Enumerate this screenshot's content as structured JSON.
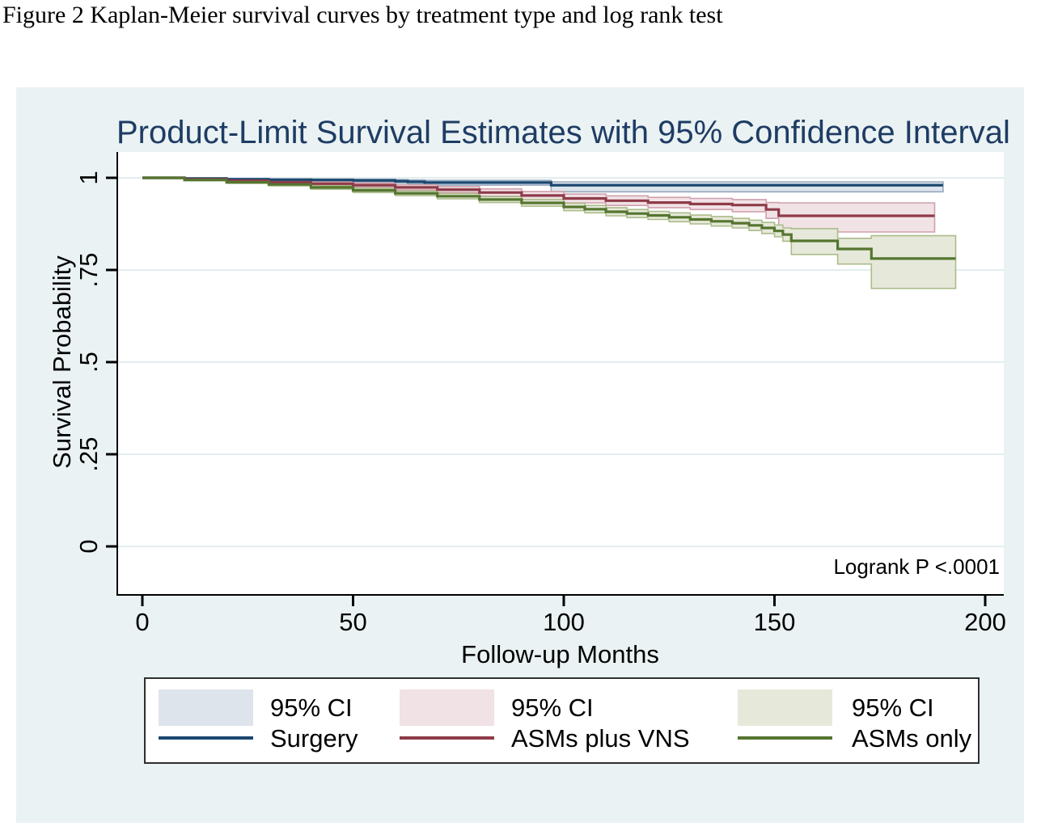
{
  "caption": "Figure 2 Kaplan-Meier survival curves by treatment type and log rank test",
  "chart_data": {
    "type": "line",
    "subtype": "kaplan-meier-step-with-ci-bands",
    "title": "Product-Limit Survival Estimates with 95% Confidence Interval",
    "xlabel": "Follow-up Months",
    "ylabel": "Survival Probability",
    "annotation": "Logrank P <.0001",
    "xlim": [
      0,
      204
    ],
    "ylim": [
      0,
      1.07
    ],
    "xticks": [
      0,
      50,
      100,
      150,
      200
    ],
    "yticks": [
      1,
      0.75,
      0.5,
      0.25,
      0
    ],
    "ytick_labels": [
      "1",
      ".75",
      ".5",
      ".25",
      "0"
    ],
    "grid": "horizontal",
    "legend_position": "bottom",
    "colors": {
      "panel_background": "#eaf2f3",
      "plot_background": "#ffffff",
      "gridline": "#e3edef",
      "axis": "#000000",
      "title": "#1e3c64",
      "text": "#000000"
    },
    "series": [
      {
        "name": "Surgery",
        "ci_label": "95% CI",
        "line_color": "#1a476f",
        "band_color": "#dde4eb",
        "band_edge": "#95a8bf",
        "x": [
          0,
          10,
          20,
          30,
          40,
          50,
          60,
          63,
          67,
          97,
          190
        ],
        "y": [
          1,
          0.998,
          0.996,
          0.995,
          0.994,
          0.993,
          0.991,
          0.989,
          0.987,
          0.98,
          0.98
        ],
        "hi": [
          1,
          0.999,
          0.998,
          0.997,
          0.997,
          0.996,
          0.995,
          0.994,
          0.993,
          0.989,
          0.989
        ],
        "lo": [
          1,
          0.996,
          0.994,
          0.992,
          0.991,
          0.989,
          0.986,
          0.983,
          0.98,
          0.962,
          0.962
        ]
      },
      {
        "name": "ASMs plus VNS",
        "ci_label": "95% CI",
        "line_color": "#8e3b49",
        "band_color": "#f1e2e6",
        "band_edge": "#cfa0ab",
        "x": [
          0,
          10,
          20,
          30,
          40,
          50,
          60,
          70,
          80,
          90,
          100,
          110,
          120,
          130,
          140,
          148,
          151,
          188
        ],
        "y": [
          1,
          0.996,
          0.992,
          0.988,
          0.984,
          0.98,
          0.974,
          0.968,
          0.96,
          0.952,
          0.944,
          0.938,
          0.933,
          0.929,
          0.926,
          0.914,
          0.897,
          0.897
        ],
        "hi": [
          1,
          0.998,
          0.995,
          0.992,
          0.989,
          0.986,
          0.981,
          0.976,
          0.97,
          0.963,
          0.956,
          0.951,
          0.947,
          0.944,
          0.941,
          0.933,
          0.932,
          0.932
        ],
        "lo": [
          1,
          0.994,
          0.989,
          0.984,
          0.979,
          0.974,
          0.967,
          0.96,
          0.95,
          0.941,
          0.932,
          0.925,
          0.919,
          0.914,
          0.908,
          0.89,
          0.853,
          0.853
        ]
      },
      {
        "name": "ASMs only",
        "ci_label": "95% CI",
        "line_color": "#55752f",
        "band_color": "#e6e9da",
        "band_edge": "#abbc8a",
        "x": [
          0,
          10,
          20,
          30,
          40,
          50,
          60,
          70,
          80,
          90,
          100,
          105,
          110,
          115,
          120,
          125,
          130,
          135,
          140,
          144,
          147,
          150,
          152,
          154,
          165,
          173,
          193
        ],
        "y": [
          1,
          0.994,
          0.988,
          0.982,
          0.974,
          0.966,
          0.958,
          0.95,
          0.941,
          0.932,
          0.921,
          0.915,
          0.908,
          0.903,
          0.898,
          0.893,
          0.887,
          0.882,
          0.877,
          0.871,
          0.864,
          0.856,
          0.846,
          0.829,
          0.807,
          0.781,
          0.781
        ],
        "hi": [
          1,
          0.996,
          0.991,
          0.986,
          0.979,
          0.972,
          0.964,
          0.957,
          0.949,
          0.941,
          0.931,
          0.925,
          0.919,
          0.914,
          0.909,
          0.905,
          0.899,
          0.895,
          0.89,
          0.885,
          0.879,
          0.872,
          0.864,
          0.862,
          0.836,
          0.843,
          0.843
        ],
        "lo": [
          1,
          0.992,
          0.985,
          0.978,
          0.969,
          0.96,
          0.952,
          0.943,
          0.933,
          0.923,
          0.911,
          0.905,
          0.897,
          0.892,
          0.887,
          0.881,
          0.875,
          0.869,
          0.864,
          0.857,
          0.849,
          0.84,
          0.828,
          0.792,
          0.766,
          0.7,
          0.7
        ]
      }
    ]
  }
}
